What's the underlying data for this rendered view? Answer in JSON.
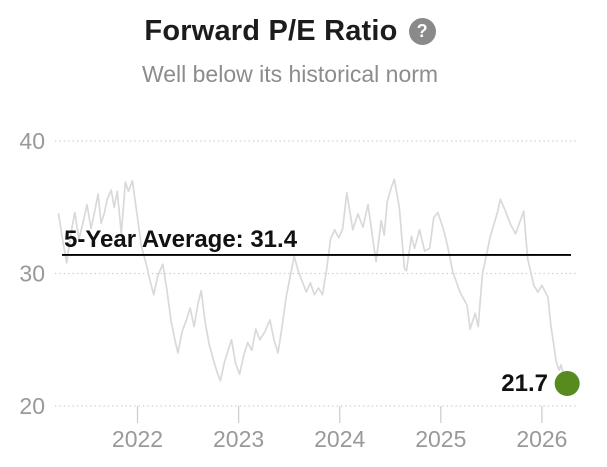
{
  "header": {
    "title": "Forward P/E Ratio",
    "help_icon": "?",
    "subtitle": "Well below its historical norm"
  },
  "chart_data": {
    "type": "line",
    "title": "Forward P/E Ratio",
    "subtitle": "Well below its historical norm",
    "x_ticks": [
      2022,
      2023,
      2024,
      2025,
      2026
    ],
    "y_ticks": [
      20,
      30,
      40
    ],
    "xlim": [
      2021.18,
      2026.42
    ],
    "ylim": [
      18.2,
      41.0
    ],
    "grid": "horizontal-dotted",
    "legend": "none",
    "average_line": {
      "label": "5-Year Average: 31.4",
      "value": 31.4
    },
    "current_point": {
      "label": "21.7",
      "x": 2026.25,
      "value": 21.7
    },
    "colors": {
      "series_line": "#d9d9d9",
      "average_line": "#000000",
      "current_dot": "#578a1f",
      "axis_text": "#999999",
      "grid": "#cfcfcf",
      "title_text": "#1c1c1c",
      "subtitle_text": "#8c8c8c",
      "help_icon_bg": "#8a8a8a"
    },
    "series": [
      {
        "name": "Forward P/E",
        "points": [
          [
            2021.22,
            34.5
          ],
          [
            2021.26,
            32.5
          ],
          [
            2021.3,
            30.8
          ],
          [
            2021.34,
            33.0
          ],
          [
            2021.38,
            34.6
          ],
          [
            2021.42,
            32.6
          ],
          [
            2021.46,
            33.8
          ],
          [
            2021.5,
            35.2
          ],
          [
            2021.54,
            33.4
          ],
          [
            2021.58,
            34.8
          ],
          [
            2021.61,
            36.0
          ],
          [
            2021.64,
            33.8
          ],
          [
            2021.67,
            34.5
          ],
          [
            2021.7,
            35.6
          ],
          [
            2021.74,
            36.3
          ],
          [
            2021.77,
            35.0
          ],
          [
            2021.8,
            36.2
          ],
          [
            2021.84,
            33.0
          ],
          [
            2021.88,
            36.9
          ],
          [
            2021.91,
            36.2
          ],
          [
            2021.95,
            37.0
          ],
          [
            2022.0,
            34.2
          ],
          [
            2022.04,
            32.0
          ],
          [
            2022.08,
            30.9
          ],
          [
            2022.12,
            29.6
          ],
          [
            2022.16,
            28.4
          ],
          [
            2022.2,
            29.8
          ],
          [
            2022.25,
            30.7
          ],
          [
            2022.29,
            28.8
          ],
          [
            2022.33,
            26.5
          ],
          [
            2022.37,
            25.0
          ],
          [
            2022.4,
            24.0
          ],
          [
            2022.44,
            25.6
          ],
          [
            2022.48,
            26.4
          ],
          [
            2022.52,
            27.4
          ],
          [
            2022.56,
            26.0
          ],
          [
            2022.6,
            27.8
          ],
          [
            2022.63,
            28.7
          ],
          [
            2022.67,
            26.3
          ],
          [
            2022.71,
            24.6
          ],
          [
            2022.75,
            23.5
          ],
          [
            2022.79,
            22.5
          ],
          [
            2022.82,
            21.9
          ],
          [
            2022.86,
            23.3
          ],
          [
            2022.9,
            24.3
          ],
          [
            2022.93,
            25.0
          ],
          [
            2022.97,
            23.2
          ],
          [
            2023.01,
            22.4
          ],
          [
            2023.05,
            23.8
          ],
          [
            2023.09,
            24.8
          ],
          [
            2023.13,
            24.2
          ],
          [
            2023.17,
            25.8
          ],
          [
            2023.21,
            25.0
          ],
          [
            2023.26,
            25.6
          ],
          [
            2023.31,
            26.5
          ],
          [
            2023.35,
            25.0
          ],
          [
            2023.39,
            24.0
          ],
          [
            2023.43,
            26.0
          ],
          [
            2023.47,
            28.2
          ],
          [
            2023.51,
            29.8
          ],
          [
            2023.55,
            31.3
          ],
          [
            2023.59,
            30.2
          ],
          [
            2023.63,
            29.4
          ],
          [
            2023.67,
            28.6
          ],
          [
            2023.71,
            29.3
          ],
          [
            2023.75,
            28.4
          ],
          [
            2023.79,
            28.9
          ],
          [
            2023.83,
            28.4
          ],
          [
            2023.87,
            30.3
          ],
          [
            2023.91,
            32.6
          ],
          [
            2023.95,
            33.3
          ],
          [
            2023.99,
            32.7
          ],
          [
            2024.03,
            33.4
          ],
          [
            2024.07,
            36.1
          ],
          [
            2024.13,
            33.3
          ],
          [
            2024.18,
            34.5
          ],
          [
            2024.23,
            33.5
          ],
          [
            2024.28,
            35.2
          ],
          [
            2024.34,
            31.9
          ],
          [
            2024.36,
            30.9
          ],
          [
            2024.41,
            34.0
          ],
          [
            2024.44,
            32.9
          ],
          [
            2024.47,
            35.4
          ],
          [
            2024.51,
            36.5
          ],
          [
            2024.54,
            37.1
          ],
          [
            2024.59,
            35.0
          ],
          [
            2024.61,
            33.1
          ],
          [
            2024.64,
            30.4
          ],
          [
            2024.66,
            30.2
          ],
          [
            2024.71,
            32.8
          ],
          [
            2024.74,
            31.9
          ],
          [
            2024.79,
            33.3
          ],
          [
            2024.84,
            31.7
          ],
          [
            2024.89,
            31.9
          ],
          [
            2024.93,
            34.2
          ],
          [
            2024.97,
            34.6
          ],
          [
            2025.02,
            33.5
          ],
          [
            2025.06,
            32.3
          ],
          [
            2025.12,
            30.1
          ],
          [
            2025.19,
            28.6
          ],
          [
            2025.26,
            27.6
          ],
          [
            2025.29,
            25.8
          ],
          [
            2025.34,
            27.0
          ],
          [
            2025.37,
            26.0
          ],
          [
            2025.41,
            29.9
          ],
          [
            2025.49,
            32.8
          ],
          [
            2025.56,
            34.6
          ],
          [
            2025.59,
            35.6
          ],
          [
            2025.64,
            34.7
          ],
          [
            2025.69,
            33.7
          ],
          [
            2025.74,
            33.0
          ],
          [
            2025.82,
            34.7
          ],
          [
            2025.86,
            31.1
          ],
          [
            2025.89,
            30.1
          ],
          [
            2025.92,
            29.1
          ],
          [
            2025.96,
            28.6
          ],
          [
            2026.0,
            29.1
          ],
          [
            2026.06,
            28.2
          ],
          [
            2026.09,
            26.0
          ],
          [
            2026.12,
            24.5
          ],
          [
            2026.14,
            23.4
          ],
          [
            2026.17,
            22.7
          ],
          [
            2026.19,
            23.1
          ],
          [
            2026.22,
            22.2
          ],
          [
            2026.25,
            21.7
          ]
        ]
      }
    ]
  }
}
